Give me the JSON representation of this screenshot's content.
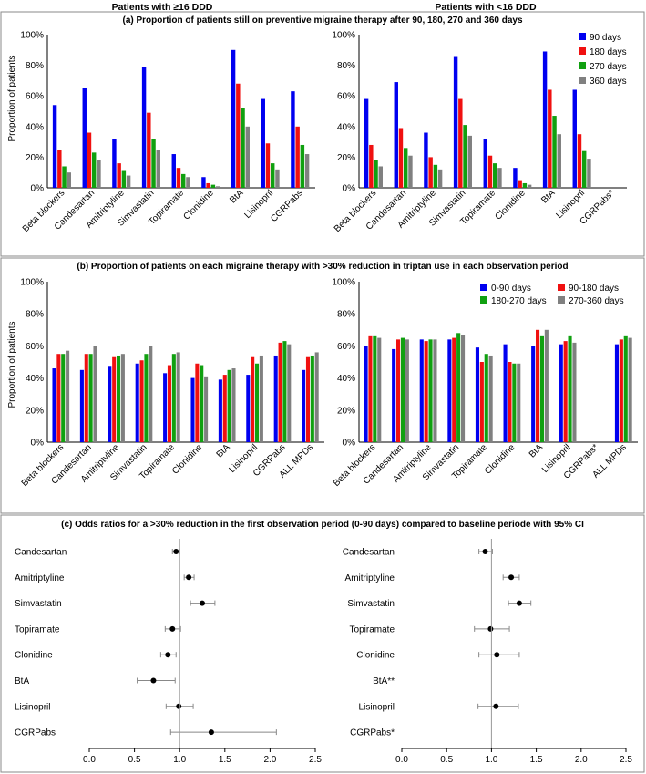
{
  "headers": {
    "left": "Patients with ≥16 DDD",
    "right": "Patients with <16 DDD"
  },
  "colors": {
    "s1": "#0000f0",
    "s2": "#f01010",
    "s3": "#10a010",
    "s4": "#808080"
  },
  "chart_data": [
    {
      "id": "a-left",
      "type": "bar",
      "title": "(a) Proportion of patients still on preventive migraine therapy after 90, 180, 270 and 360 days",
      "ylabel": "Proportion of patients",
      "ylim": [
        0,
        100
      ],
      "yticks": [
        "0%",
        "20%",
        "40%",
        "60%",
        "80%",
        "100%"
      ],
      "categories": [
        "Beta blockers",
        "Candesartan",
        "Amitriptyline",
        "Simvastatin",
        "Topiramate",
        "Clonidine",
        "BtA",
        "Lisinopril",
        "CGRPabs"
      ],
      "series": [
        {
          "name": "90 days",
          "values": [
            54,
            65,
            32,
            79,
            22,
            7,
            90,
            58,
            63
          ]
        },
        {
          "name": "180 days",
          "values": [
            25,
            36,
            16,
            49,
            13,
            3,
            68,
            29,
            40
          ]
        },
        {
          "name": "270 days",
          "values": [
            14,
            23,
            11,
            32,
            9,
            2,
            52,
            16,
            28
          ]
        },
        {
          "name": "360 days",
          "values": [
            10,
            18,
            8,
            25,
            7,
            1,
            40,
            12,
            22
          ]
        }
      ]
    },
    {
      "id": "a-right",
      "type": "bar",
      "ylim": [
        0,
        100
      ],
      "yticks": [
        "0%",
        "20%",
        "40%",
        "60%",
        "80%",
        "100%"
      ],
      "categories": [
        "Beta blockers",
        "Candesartan",
        "Amitriptyline",
        "Simvastatin",
        "Topiramate",
        "Clonidine",
        "BtA",
        "Lisinopril",
        "CGRPabs*"
      ],
      "series": [
        {
          "name": "90 days",
          "values": [
            58,
            69,
            36,
            86,
            32,
            13,
            89,
            64,
            null
          ]
        },
        {
          "name": "180 days",
          "values": [
            28,
            39,
            20,
            58,
            21,
            5,
            64,
            35,
            null
          ]
        },
        {
          "name": "270 days",
          "values": [
            18,
            26,
            15,
            41,
            16,
            3,
            47,
            24,
            null
          ]
        },
        {
          "name": "360 days",
          "values": [
            14,
            21,
            12,
            34,
            13,
            2,
            35,
            19,
            null
          ]
        }
      ],
      "legend": "top-right"
    },
    {
      "id": "b-left",
      "type": "bar",
      "title": "(b) Proportion of patients on each migraine therapy with >30% reduction in triptan use in each observation period",
      "ylabel": "Proportion of patients",
      "ylim": [
        0,
        100
      ],
      "yticks": [
        "0%",
        "20%",
        "40%",
        "60%",
        "80%",
        "100%"
      ],
      "categories": [
        "Beta blockers",
        "Candesartan",
        "Amitriptyline",
        "Simvastatin",
        "Topiramate",
        "Clonidine",
        "BtA",
        "Lisinopril",
        "CGRPabs",
        "ALL MPDs"
      ],
      "series": [
        {
          "name": "0-90 days",
          "values": [
            46,
            45,
            47,
            49,
            43,
            40,
            39,
            42,
            54,
            45
          ]
        },
        {
          "name": "90-180 days",
          "values": [
            55,
            55,
            53,
            51,
            48,
            49,
            42,
            53,
            62,
            53
          ]
        },
        {
          "name": "180-270 days",
          "values": [
            55,
            55,
            54,
            55,
            55,
            48,
            45,
            49,
            63,
            54
          ]
        },
        {
          "name": "270-360 days",
          "values": [
            57,
            60,
            55,
            60,
            56,
            41,
            46,
            54,
            61,
            56
          ]
        }
      ]
    },
    {
      "id": "b-right",
      "type": "bar",
      "ylim": [
        0,
        100
      ],
      "yticks": [
        "0%",
        "20%",
        "40%",
        "60%",
        "80%",
        "100%"
      ],
      "categories": [
        "Beta blockers",
        "Candesartan",
        "Amitriptyline",
        "Simvastatin",
        "Topiramate",
        "Clonidine",
        "BtA",
        "Lisinopril",
        "CGRPabs*",
        "ALL MPDs"
      ],
      "series": [
        {
          "name": "0-90 days",
          "values": [
            60,
            58,
            64,
            64,
            59,
            61,
            60,
            61,
            null,
            61
          ]
        },
        {
          "name": "90-180 days",
          "values": [
            66,
            64,
            63,
            65,
            50,
            50,
            70,
            63,
            null,
            64
          ]
        },
        {
          "name": "180-270 days",
          "values": [
            66,
            65,
            64,
            68,
            55,
            49,
            66,
            66,
            null,
            66
          ]
        },
        {
          "name": "270-360 days",
          "values": [
            65,
            64,
            64,
            67,
            54,
            49,
            70,
            62,
            null,
            65
          ]
        }
      ],
      "legend": "top-right"
    },
    {
      "id": "c-left",
      "type": "forest",
      "title": "(c) Odds ratios for a >30% reduction in the first observation period (0-90 days) compared to baseline periode with 95% CI",
      "xlim": [
        0,
        2.5
      ],
      "xticks": [
        "0.0",
        "0.5",
        "1.0",
        "1.5",
        "2.0",
        "2.5"
      ],
      "rows": [
        {
          "label": "Candesartan",
          "or": 0.96,
          "lo": 0.92,
          "hi": 1.0
        },
        {
          "label": "Amitriptyline",
          "or": 1.1,
          "lo": 1.05,
          "hi": 1.16
        },
        {
          "label": "Simvastatin",
          "or": 1.25,
          "lo": 1.12,
          "hi": 1.39
        },
        {
          "label": "Topiramate",
          "or": 0.92,
          "lo": 0.84,
          "hi": 1.01
        },
        {
          "label": "Clonidine",
          "or": 0.87,
          "lo": 0.79,
          "hi": 0.96
        },
        {
          "label": "BtA",
          "or": 0.71,
          "lo": 0.53,
          "hi": 0.95
        },
        {
          "label": "Lisinopril",
          "or": 0.99,
          "lo": 0.85,
          "hi": 1.15
        },
        {
          "label": "CGRPabs",
          "or": 1.35,
          "lo": 0.9,
          "hi": 2.07
        }
      ]
    },
    {
      "id": "c-right",
      "type": "forest",
      "xlim": [
        0,
        2.5
      ],
      "xticks": [
        "0.0",
        "0.5",
        "1.0",
        "1.5",
        "2.0",
        "2.5"
      ],
      "rows": [
        {
          "label": "Candesartan",
          "or": 0.93,
          "lo": 0.86,
          "hi": 1.01
        },
        {
          "label": "Amitriptyline",
          "or": 1.22,
          "lo": 1.13,
          "hi": 1.31
        },
        {
          "label": "Simvastatin",
          "or": 1.31,
          "lo": 1.19,
          "hi": 1.44
        },
        {
          "label": "Topiramate",
          "or": 0.99,
          "lo": 0.81,
          "hi": 1.2
        },
        {
          "label": "Clonidine",
          "or": 1.06,
          "lo": 0.86,
          "hi": 1.31
        },
        {
          "label": "BtA**",
          "or": null,
          "lo": null,
          "hi": null
        },
        {
          "label": "Lisinopril",
          "or": 1.05,
          "lo": 0.85,
          "hi": 1.3
        },
        {
          "label": "CGRPabs*",
          "or": null,
          "lo": null,
          "hi": null
        }
      ]
    }
  ]
}
